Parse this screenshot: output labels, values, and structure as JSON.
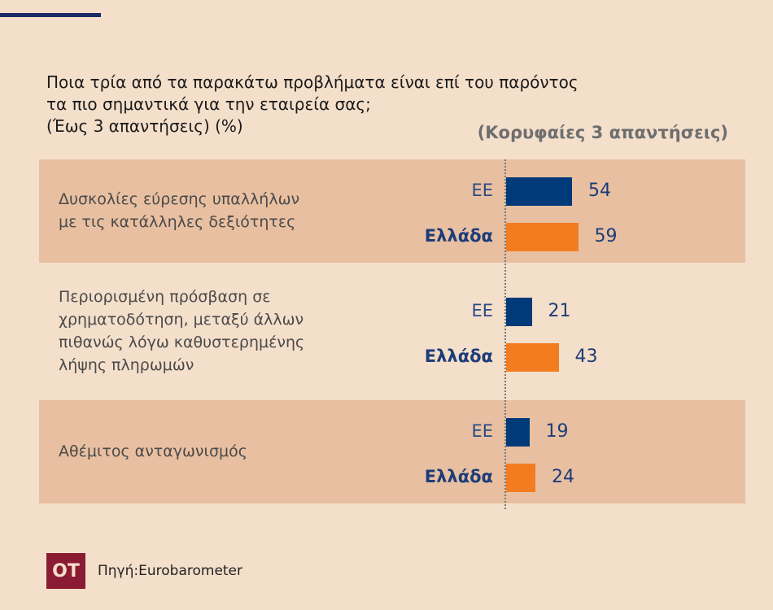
{
  "chart_data": {
    "type": "bar",
    "title": "Ποια τρία από τα παρακάτω προβλήματα είναι επί του παρόντος τα πιο σημαντικά για την εταιρεία σας; (Έως 3 απαντήσεις) (%)",
    "title_lines": [
      "Ποια τρία από τα παρακάτω προβλήματα είναι επί του παρόντος",
      "τα πιο σημαντικά για την εταιρεία σας;",
      "(Έως 3 απαντήσεις) (%)"
    ],
    "subtitle": "(Κορυφαίες 3 απαντήσεις)",
    "categories": [
      [
        "Δυσκολίες εύρεσης υπαλλήλων",
        "με τις κατάλληλες δεξιότητες"
      ],
      [
        "Περιορισμένη πρόσβαση σε",
        "χρηματοδότηση, μεταξύ άλλων",
        "πιθανώς λόγω καθυστερημένης",
        "λήψης πληρωμών"
      ],
      [
        "Αθέμιτος ανταγωνισμός"
      ]
    ],
    "series": [
      {
        "name": "ΕΕ",
        "values": [
          54,
          21,
          19
        ],
        "color": "#003a78"
      },
      {
        "name": "Ελλάδα",
        "values": [
          59,
          43,
          24
        ],
        "color": "#f47c20"
      }
    ],
    "xlim": [
      0,
      100
    ]
  },
  "source": "Πηγή:Eurobarometer",
  "logo": "OT"
}
